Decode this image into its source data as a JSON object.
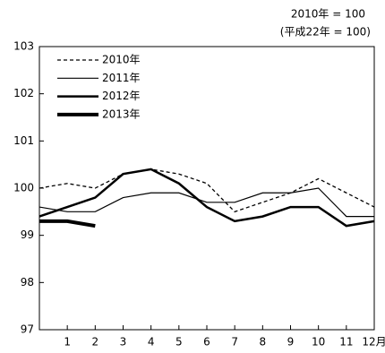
{
  "chart_data": {
    "type": "line",
    "annotations": [
      "2010年 = 100",
      "(平成22年 = 100)"
    ],
    "categories": [
      null,
      "1",
      "2",
      "3",
      "4",
      "5",
      "6",
      "7",
      "8",
      "9",
      "10",
      "11",
      "12月"
    ],
    "series": [
      {
        "name": "2010年",
        "color": "#000000",
        "width": 1.3,
        "dash": "4,3",
        "values": [
          100.0,
          100.1,
          100.0,
          100.3,
          100.4,
          100.3,
          100.1,
          99.5,
          99.7,
          99.9,
          100.2,
          99.9,
          99.6
        ]
      },
      {
        "name": "2011年",
        "color": "#000000",
        "width": 1.2,
        "dash": null,
        "values": [
          99.6,
          99.5,
          99.5,
          99.8,
          99.9,
          99.9,
          99.7,
          99.7,
          99.9,
          99.9,
          100.0,
          99.4,
          99.4
        ]
      },
      {
        "name": "2012年",
        "color": "#000000",
        "width": 2.5,
        "dash": null,
        "values": [
          99.4,
          99.6,
          99.8,
          100.3,
          100.4,
          100.1,
          99.6,
          99.3,
          99.4,
          99.6,
          99.6,
          99.2,
          99.3
        ]
      },
      {
        "name": "2013年",
        "color": "#000000",
        "width": 4,
        "dash": null,
        "values": [
          99.3,
          99.3,
          99.2,
          null,
          null,
          null,
          null,
          null,
          null,
          null,
          null,
          null,
          null
        ]
      }
    ],
    "ylim": [
      97,
      103
    ],
    "yticks": [
      97,
      98,
      99,
      100,
      101,
      102,
      103
    ],
    "grid": false
  }
}
